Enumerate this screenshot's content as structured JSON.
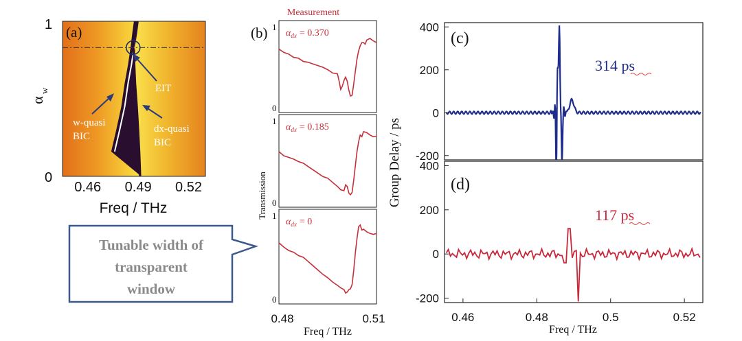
{
  "colors": {
    "heatmap_bright": "#f7d23a",
    "heatmap_orange": "#e07a1a",
    "heatmap_dark": "#1a0a2a",
    "measurement_red": "#c4303a",
    "delay_blue": "#1e2d8a",
    "delay_red": "#c8283a",
    "callout_border": "#3b5a8a",
    "callout_text": "#8a8a8a",
    "annotation_blue": "#2a3a7a"
  },
  "callout": {
    "lines": [
      "Tunable width of",
      "transparent",
      "window"
    ]
  },
  "chart_data": [
    {
      "type": "heatmap",
      "panel_label": "(a)",
      "xlabel": "Freq / THz",
      "ylabel": "α",
      "ylabel_sub": "w",
      "x_ticks": [
        "0.46",
        "0.49",
        "0.52"
      ],
      "x_tick_values": [
        0.46,
        0.49,
        0.52
      ],
      "y_ticks": [
        "0",
        "1"
      ],
      "y_tick_values": [
        0,
        1
      ],
      "xlim": [
        0.445,
        0.53
      ],
      "ylim": [
        0,
        1
      ],
      "reference_line": {
        "y": 0.83,
        "style": "dash-dot"
      },
      "annotations": {
        "eit": "EIT",
        "w_bic": [
          "w-quasi",
          "BIC"
        ],
        "dx_bic": [
          "dx-quasi",
          "BIC"
        ]
      },
      "eit_point": {
        "x": 0.487,
        "y": 0.83
      },
      "w_quasi_bic_curve": {
        "y": [
          0.16,
          0.3,
          0.45,
          0.6,
          0.72,
          0.83,
          0.92,
          1.0
        ],
        "x": [
          0.476,
          0.479,
          0.482,
          0.484,
          0.486,
          0.4875,
          0.4885,
          0.4895
        ]
      },
      "dx_quasi_bic_curve": {
        "y": [
          0.0,
          0.15,
          0.3,
          0.45,
          0.6,
          0.72,
          0.83,
          0.92,
          1.0
        ],
        "x": [
          0.491,
          0.4905,
          0.4898,
          0.489,
          0.488,
          0.4875,
          0.4872,
          0.4885,
          0.4895
        ]
      }
    },
    {
      "type": "line",
      "panel_label": "(b)",
      "title": "Measurement",
      "xlabel": "Freq / THz",
      "ylabel": "Transmission",
      "x_ticks": [
        "0.48",
        "0.51"
      ],
      "x_tick_values": [
        0.48,
        0.51
      ],
      "xlim": [
        0.48,
        0.51
      ],
      "ylim": [
        0,
        1
      ],
      "y_ticks": [
        "0",
        "1"
      ],
      "series": [
        {
          "name": "α_dx = 0.370",
          "label_var": "α",
          "label_sub": "dx",
          "label_val": "= 0.370",
          "x": [
            0.48,
            0.4815,
            0.483,
            0.4845,
            0.486,
            0.4875,
            0.489,
            0.4905,
            0.492,
            0.4935,
            0.495,
            0.4965,
            0.498,
            0.4985,
            0.499,
            0.4995,
            0.5,
            0.5005,
            0.501,
            0.5015,
            0.502,
            0.5025,
            0.503,
            0.5035,
            0.504,
            0.5045,
            0.505,
            0.5055,
            0.506,
            0.5065,
            0.507,
            0.508,
            0.509,
            0.51
          ],
          "y": [
            0.72,
            0.68,
            0.66,
            0.62,
            0.61,
            0.57,
            0.56,
            0.54,
            0.52,
            0.5,
            0.47,
            0.43,
            0.42,
            0.33,
            0.23,
            0.27,
            0.34,
            0.38,
            0.33,
            0.22,
            0.15,
            0.16,
            0.3,
            0.45,
            0.6,
            0.7,
            0.76,
            0.8,
            0.8,
            0.78,
            0.83,
            0.85,
            0.82,
            0.8
          ]
        },
        {
          "name": "α_dx = 0.185",
          "label_var": "α",
          "label_sub": "dx",
          "label_val": "= 0.185",
          "x": [
            0.48,
            0.4815,
            0.483,
            0.4845,
            0.486,
            0.4875,
            0.489,
            0.4905,
            0.492,
            0.4935,
            0.495,
            0.4965,
            0.498,
            0.499,
            0.5,
            0.5005,
            0.501,
            0.5015,
            0.502,
            0.5025,
            0.503,
            0.5035,
            0.504,
            0.5045,
            0.505,
            0.5055,
            0.506,
            0.507,
            0.508,
            0.509,
            0.51
          ],
          "y": [
            0.62,
            0.57,
            0.55,
            0.53,
            0.5,
            0.48,
            0.44,
            0.4,
            0.36,
            0.32,
            0.3,
            0.25,
            0.2,
            0.16,
            0.15,
            0.22,
            0.2,
            0.12,
            0.1,
            0.13,
            0.28,
            0.45,
            0.62,
            0.74,
            0.82,
            0.8,
            0.86,
            0.85,
            0.82,
            0.8,
            0.8
          ]
        },
        {
          "name": "α_dx = 0",
          "label_var": "α",
          "label_sub": "dx",
          "label_val": "= 0",
          "x": [
            0.48,
            0.4815,
            0.483,
            0.4845,
            0.486,
            0.4875,
            0.489,
            0.4905,
            0.492,
            0.4935,
            0.495,
            0.4965,
            0.498,
            0.499,
            0.5,
            0.5005,
            0.501,
            0.5015,
            0.502,
            0.5025,
            0.503,
            0.5035,
            0.504,
            0.5045,
            0.505,
            0.5055,
            0.506,
            0.507,
            0.508,
            0.509,
            0.51
          ],
          "y": [
            0.67,
            0.62,
            0.58,
            0.56,
            0.52,
            0.5,
            0.45,
            0.4,
            0.35,
            0.3,
            0.26,
            0.21,
            0.17,
            0.14,
            0.12,
            0.08,
            0.09,
            0.12,
            0.13,
            0.18,
            0.35,
            0.55,
            0.72,
            0.86,
            0.88,
            0.82,
            0.83,
            0.8,
            0.78,
            0.77,
            0.78
          ]
        }
      ]
    },
    {
      "type": "line",
      "panel_label": "(c)",
      "annotation": "314 ps",
      "ylabel": "Group Delay / ps",
      "xlim": [
        0.455,
        0.525
      ],
      "ylim": [
        -220,
        420
      ],
      "y_ticks": [
        "-200",
        "0",
        "200",
        "400"
      ],
      "y_tick_values": [
        -200,
        0,
        200,
        400
      ],
      "series": [
        {
          "name": "",
          "color": "#1e2d8a"
        }
      ]
    },
    {
      "type": "line",
      "panel_label": "(d)",
      "annotation": "117 ps",
      "xlabel": "Freq / THz",
      "xlim": [
        0.455,
        0.525
      ],
      "ylim": [
        -220,
        420
      ],
      "x_ticks": [
        "0.46",
        "0.48",
        "0.5",
        "0.52"
      ],
      "x_tick_values": [
        0.46,
        0.48,
        0.5,
        0.52
      ],
      "y_ticks": [
        "-200",
        "0",
        "200",
        "400"
      ],
      "y_tick_values": [
        -200,
        0,
        200,
        400
      ],
      "series": [
        {
          "name": "",
          "color": "#c8283a"
        }
      ]
    }
  ]
}
